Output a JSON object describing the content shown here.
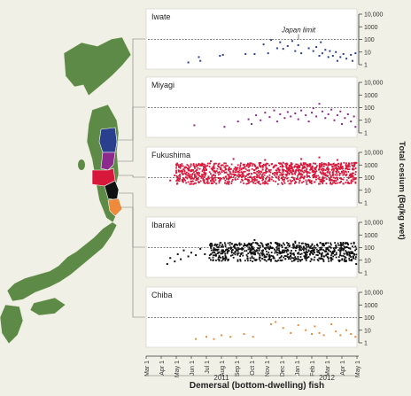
{
  "colors": {
    "background": "#f1f0e6",
    "iwate": "#2b3f8f",
    "miyagi": "#8c2a8d",
    "fukushima": "#d8183b",
    "ibaraki": "#111111",
    "chiba": "#ee8a3c",
    "map_land": "#5e8a47",
    "limit_line": "#555555"
  },
  "chart_data": {
    "type": "scatter",
    "x_unit": "month",
    "x_range": [
      "2011-03-01",
      "2012-05-01"
    ],
    "x_ticks": [
      "Mar 1",
      "Apr 1",
      "May 1",
      "Jun 1",
      "Jul 1",
      "Aug 1",
      "Sep 1",
      "Oct 1",
      "Nov 1",
      "Dec 1",
      "Jan 1",
      "Feb 1",
      "Mar 1",
      "Apr 1",
      "May 1"
    ],
    "years": [
      "2011",
      "2012"
    ],
    "xlabel": "Demersal (bottom-dwelling) fish",
    "ylabel": "Total cesium (Bq/kg wet)",
    "y_scale": "log",
    "ylim": [
      1,
      10000
    ],
    "y_ticks": [
      "10,000",
      "1000",
      "100",
      "10",
      "1"
    ],
    "limit_value": 100,
    "limit_label": "Japan limit",
    "panels": [
      {
        "name": "Iwate",
        "color_key": "iwate",
        "points": [
          [
            2.8,
            1.5
          ],
          [
            3.5,
            4
          ],
          [
            3.6,
            2
          ],
          [
            4.9,
            5
          ],
          [
            5.1,
            6
          ],
          [
            6.6,
            7
          ],
          [
            7.2,
            7
          ],
          [
            7.8,
            40
          ],
          [
            8.1,
            8
          ],
          [
            8.3,
            90
          ],
          [
            8.7,
            20
          ],
          [
            8.9,
            60
          ],
          [
            9.1,
            18
          ],
          [
            9.4,
            30
          ],
          [
            9.7,
            75
          ],
          [
            9.9,
            12
          ],
          [
            10.1,
            35
          ],
          [
            10.3,
            8
          ],
          [
            10.8,
            20
          ],
          [
            11.1,
            12
          ],
          [
            11.3,
            25
          ],
          [
            11.6,
            60
          ],
          [
            11.7,
            8
          ],
          [
            11.9,
            15
          ],
          [
            12.1,
            4
          ],
          [
            12.2,
            12
          ],
          [
            12.4,
            5
          ],
          [
            12.6,
            10
          ],
          [
            12.9,
            4
          ],
          [
            13.1,
            7
          ],
          [
            13.3,
            3
          ],
          [
            13.6,
            6
          ],
          [
            13.9,
            8
          ],
          [
            13.7,
            2
          ],
          [
            12.7,
            2
          ],
          [
            11.5,
            5
          ]
        ]
      },
      {
        "name": "Miyagi",
        "color_key": "miyagi",
        "points": [
          [
            3.2,
            4
          ],
          [
            5.2,
            3
          ],
          [
            6.1,
            8
          ],
          [
            6.8,
            12
          ],
          [
            7.0,
            5
          ],
          [
            7.3,
            25
          ],
          [
            7.6,
            10
          ],
          [
            7.9,
            40
          ],
          [
            8.2,
            18
          ],
          [
            8.5,
            60
          ],
          [
            8.7,
            8
          ],
          [
            8.9,
            30
          ],
          [
            9.2,
            15
          ],
          [
            9.4,
            45
          ],
          [
            9.6,
            20
          ],
          [
            9.9,
            35
          ],
          [
            10.1,
            12
          ],
          [
            10.3,
            60
          ],
          [
            10.6,
            25
          ],
          [
            10.8,
            8
          ],
          [
            11.0,
            40
          ],
          [
            11.1,
            90
          ],
          [
            11.3,
            20
          ],
          [
            11.5,
            200
          ],
          [
            11.7,
            50
          ],
          [
            11.9,
            15
          ],
          [
            12.1,
            30
          ],
          [
            12.3,
            70
          ],
          [
            12.5,
            10
          ],
          [
            12.7,
            25
          ],
          [
            12.9,
            50
          ],
          [
            13.0,
            5
          ],
          [
            13.2,
            15
          ],
          [
            13.4,
            30
          ],
          [
            13.6,
            8
          ],
          [
            13.8,
            20
          ],
          [
            13.9,
            3
          ]
        ]
      },
      {
        "name": "Fukushima",
        "color_key": "fukushima",
        "points": [
          [
            1.6,
            60
          ],
          [
            1.9,
            150
          ],
          [
            2.2,
            300
          ],
          [
            2.5,
            80
          ],
          [
            2.8,
            500
          ],
          [
            3.1,
            200
          ],
          [
            3.4,
            900
          ],
          [
            3.7,
            120
          ],
          [
            4.0,
            400
          ],
          [
            4.3,
            2000
          ],
          [
            4.6,
            250
          ],
          [
            4.9,
            80
          ],
          [
            5.2,
            700
          ],
          [
            5.5,
            150
          ],
          [
            5.8,
            3000
          ],
          [
            6.1,
            300
          ],
          [
            6.4,
            60
          ],
          [
            6.7,
            1000
          ],
          [
            7.0,
            200
          ],
          [
            7.3,
            500
          ],
          [
            7.6,
            90
          ],
          [
            7.9,
            2500
          ],
          [
            8.2,
            300
          ],
          [
            8.5,
            700
          ],
          [
            8.8,
            120
          ],
          [
            9.1,
            1500
          ],
          [
            9.4,
            250
          ],
          [
            9.7,
            600
          ],
          [
            10.0,
            80
          ],
          [
            10.3,
            3000
          ],
          [
            10.6,
            300
          ],
          [
            10.9,
            900
          ],
          [
            11.2,
            150
          ],
          [
            11.5,
            4000
          ],
          [
            11.8,
            400
          ],
          [
            12.1,
            1000
          ],
          [
            12.4,
            200
          ],
          [
            12.7,
            2500
          ],
          [
            13.0,
            300
          ],
          [
            13.3,
            700
          ],
          [
            13.6,
            150
          ],
          [
            13.9,
            1500
          ]
        ]
      },
      {
        "name": "Ibaraki",
        "color_key": "ibaraki",
        "points": [
          [
            1.4,
            5
          ],
          [
            1.6,
            15
          ],
          [
            1.9,
            8
          ],
          [
            2.1,
            30
          ],
          [
            2.3,
            12
          ],
          [
            2.5,
            60
          ],
          [
            2.8,
            20
          ],
          [
            3.0,
            40
          ],
          [
            3.3,
            25
          ],
          [
            3.6,
            80
          ],
          [
            3.9,
            30
          ],
          [
            4.2,
            15
          ],
          [
            4.5,
            90
          ],
          [
            4.8,
            40
          ],
          [
            5.1,
            120
          ],
          [
            5.4,
            50
          ],
          [
            5.7,
            200
          ],
          [
            6.0,
            60
          ],
          [
            6.3,
            30
          ],
          [
            6.6,
            150
          ],
          [
            6.9,
            80
          ],
          [
            7.2,
            400
          ],
          [
            7.5,
            60
          ],
          [
            7.8,
            30
          ],
          [
            8.1,
            200
          ],
          [
            8.4,
            90
          ],
          [
            8.7,
            40
          ],
          [
            9.0,
            150
          ],
          [
            9.3,
            60
          ],
          [
            9.6,
            20
          ],
          [
            9.9,
            300
          ],
          [
            10.2,
            80
          ],
          [
            10.5,
            40
          ],
          [
            10.8,
            120
          ],
          [
            11.1,
            60
          ],
          [
            11.4,
            25
          ],
          [
            11.7,
            200
          ],
          [
            12.0,
            80
          ],
          [
            12.3,
            15
          ],
          [
            12.6,
            150
          ],
          [
            12.9,
            50
          ],
          [
            13.2,
            100
          ],
          [
            13.5,
            30
          ],
          [
            13.8,
            250
          ],
          [
            13.95,
            5
          ]
        ]
      },
      {
        "name": "Chiba",
        "color_key": "chiba",
        "points": [
          [
            3.3,
            2
          ],
          [
            4.0,
            3
          ],
          [
            4.5,
            2
          ],
          [
            5.0,
            4
          ],
          [
            5.6,
            3
          ],
          [
            6.5,
            5
          ],
          [
            7.1,
            3
          ],
          [
            8.3,
            30
          ],
          [
            8.6,
            45
          ],
          [
            9.1,
            15
          ],
          [
            9.6,
            6
          ],
          [
            10.1,
            25
          ],
          [
            10.6,
            10
          ],
          [
            11.0,
            5
          ],
          [
            11.2,
            20
          ],
          [
            11.5,
            6
          ],
          [
            11.8,
            4
          ],
          [
            12.3,
            30
          ],
          [
            12.6,
            8
          ],
          [
            12.9,
            4
          ],
          [
            13.3,
            10
          ],
          [
            13.6,
            5
          ],
          [
            13.9,
            3
          ]
        ]
      }
    ]
  }
}
